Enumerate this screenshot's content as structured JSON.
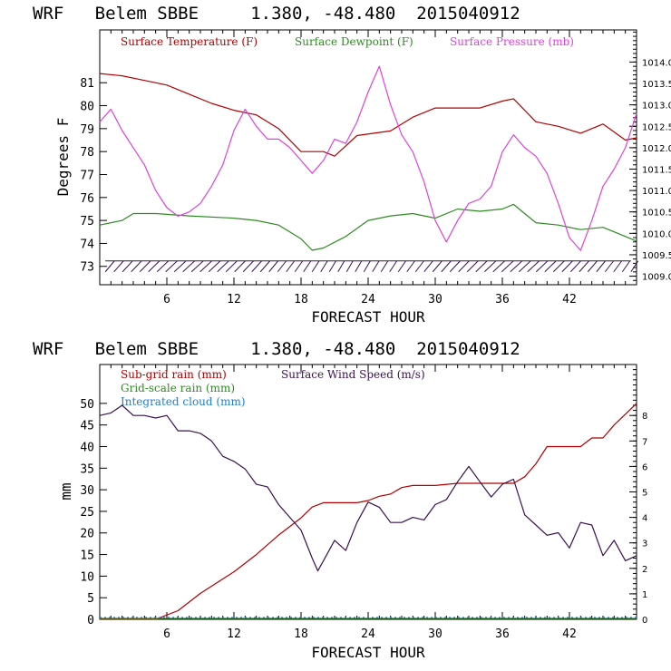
{
  "chart_data": [
    {
      "type": "line",
      "title": "WRF   Belem SBBE     1.380, -48.480  2015040912",
      "xlabel": "FORECAST HOUR",
      "ylabel": "Degrees F",
      "xlim": [
        0,
        48
      ],
      "ylim": [
        72.2,
        83.3
      ],
      "y2lim": [
        1008.8,
        1014.75
      ],
      "xticks": [
        6,
        12,
        18,
        24,
        30,
        36,
        42
      ],
      "yticks": [
        73,
        74,
        75,
        76,
        77,
        78,
        79,
        80,
        81
      ],
      "y2ticks": [
        "1009.0",
        "1009.5",
        "1010.0",
        "1010.5",
        "1011.0",
        "1011.5",
        "1012.0",
        "1012.5",
        "1013.0",
        "1013.5",
        "1014.0"
      ],
      "legend": "top",
      "series": [
        {
          "name": "Surface Temperature (F)",
          "color": "#b30000",
          "axis": "left",
          "x": [
            0,
            2,
            4,
            6,
            8,
            10,
            12,
            14,
            16,
            18,
            20,
            21,
            23,
            26,
            28,
            30,
            32,
            34,
            36,
            37,
            39,
            41,
            43,
            45,
            47,
            48
          ],
          "y": [
            81.4,
            81.3,
            81.1,
            80.9,
            80.5,
            80.1,
            79.8,
            79.6,
            79.0,
            78.0,
            78.0,
            77.8,
            78.7,
            78.9,
            79.5,
            79.9,
            79.9,
            79.9,
            80.2,
            80.3,
            79.3,
            79.1,
            78.8,
            79.2,
            78.5,
            78.6
          ]
        },
        {
          "name": "Surface Dewpoint (F)",
          "color": "#2e8b22",
          "axis": "left",
          "x": [
            0,
            2,
            3,
            5,
            8,
            12,
            14,
            16,
            18,
            19,
            20,
            22,
            24,
            26,
            28,
            30,
            32,
            34,
            36,
            37,
            39,
            41,
            43,
            45,
            47,
            48
          ],
          "y": [
            74.8,
            75.0,
            75.3,
            75.3,
            75.2,
            75.1,
            75.0,
            74.8,
            74.2,
            73.7,
            73.8,
            74.3,
            75.0,
            75.2,
            75.3,
            75.1,
            75.5,
            75.4,
            75.5,
            75.7,
            74.9,
            74.8,
            74.6,
            74.7,
            74.3,
            74.1
          ]
        },
        {
          "name": "Surface Pressure (mb)",
          "color": "#e040e0",
          "axis": "right",
          "x": [
            0,
            1,
            2,
            3,
            4,
            5,
            6,
            7,
            8,
            9,
            10,
            11,
            12,
            13,
            14,
            15,
            16,
            17,
            18,
            19,
            20,
            21,
            22,
            23,
            24,
            25,
            26,
            27,
            28,
            29,
            30,
            31,
            32,
            33,
            34,
            35,
            36,
            37,
            38,
            39,
            40,
            41,
            42,
            43,
            44,
            45,
            46,
            47,
            48
          ],
          "y": [
            1012.6,
            1012.9,
            1012.4,
            1012.0,
            1011.6,
            1011.0,
            1010.6,
            1010.4,
            1010.5,
            1010.7,
            1011.1,
            1011.6,
            1012.4,
            1012.9,
            1012.5,
            1012.2,
            1012.2,
            1012.0,
            1011.7,
            1011.4,
            1011.7,
            1012.2,
            1012.1,
            1012.6,
            1013.3,
            1013.9,
            1013.0,
            1012.3,
            1011.9,
            1011.2,
            1010.3,
            1009.8,
            1010.3,
            1010.7,
            1010.8,
            1011.1,
            1011.9,
            1012.3,
            1012.0,
            1011.8,
            1011.4,
            1010.7,
            1009.9,
            1009.6,
            1010.3,
            1011.1,
            1011.5,
            1012.0,
            1012.8
          ]
        }
      ],
      "wind_barbs": {
        "color": "#3b1050",
        "y": 73,
        "x_start": 0.5,
        "x_end": 47.5,
        "count": 62
      }
    },
    {
      "type": "line",
      "title": "WRF   Belem SBBE     1.380, -48.480  2015040912",
      "xlabel": "FORECAST HOUR",
      "ylabel": "mm",
      "xlim": [
        0,
        48
      ],
      "ylim": [
        0,
        59
      ],
      "y2lim": [
        0,
        10
      ],
      "xticks": [
        6,
        12,
        18,
        24,
        30,
        36,
        42
      ],
      "yticks": [
        0,
        5,
        10,
        15,
        20,
        25,
        30,
        35,
        40,
        45,
        50
      ],
      "y2ticks": [
        0,
        1,
        2,
        3,
        4,
        5,
        6,
        7,
        8
      ],
      "legend": "top-left",
      "series": [
        {
          "name": "Sub-grid rain (mm)",
          "color": "#b30000",
          "axis": "left",
          "x": [
            0,
            5,
            5.3,
            7,
            9,
            12,
            14,
            16,
            18,
            19,
            20,
            21,
            23,
            24,
            25,
            26,
            27,
            28,
            30,
            32,
            34,
            36,
            37,
            38,
            39,
            40,
            41,
            43,
            44,
            45,
            46,
            48
          ],
          "y": [
            0,
            0,
            0.3,
            2,
            6,
            11,
            15,
            19.5,
            23.5,
            26,
            27,
            27,
            27,
            27.5,
            28.5,
            29,
            30.5,
            31,
            31,
            31.5,
            31.5,
            31.5,
            31.5,
            33,
            36,
            40,
            40,
            40,
            42,
            42,
            45,
            50
          ]
        },
        {
          "name": "Surface Wind Speed (m/s)",
          "color": "#3b1050",
          "axis": "right",
          "x": [
            0,
            1,
            2,
            3,
            4,
            5,
            6,
            7,
            8,
            9,
            10,
            11,
            12,
            13,
            14,
            15,
            16,
            17,
            18,
            19,
            19.5,
            20,
            21,
            22,
            23,
            24,
            25,
            26,
            27,
            28,
            29,
            30,
            31,
            32,
            33,
            34,
            35,
            36,
            37,
            38,
            39,
            40,
            41,
            42,
            43,
            44,
            45,
            46,
            47,
            48
          ],
          "y": [
            8.0,
            8.1,
            8.4,
            8.0,
            8.0,
            7.9,
            8.0,
            7.4,
            7.4,
            7.3,
            7.0,
            6.4,
            6.2,
            5.9,
            5.3,
            5.2,
            4.5,
            4.0,
            3.5,
            2.4,
            1.9,
            2.3,
            3.1,
            2.7,
            3.8,
            4.6,
            4.4,
            3.8,
            3.8,
            4.0,
            3.9,
            4.5,
            4.7,
            5.4,
            6.0,
            5.4,
            4.8,
            5.3,
            5.5,
            4.1,
            3.7,
            3.3,
            3.4,
            2.8,
            3.8,
            3.7,
            2.5,
            3.1,
            2.3,
            2.5
          ]
        }
      ],
      "legend_entries": [
        {
          "name": "Grid-scale rain (mm)",
          "color": "#2e8b22"
        },
        {
          "name": "Integrated cloud (mm)",
          "color": "#1e7fd0"
        }
      ]
    }
  ]
}
